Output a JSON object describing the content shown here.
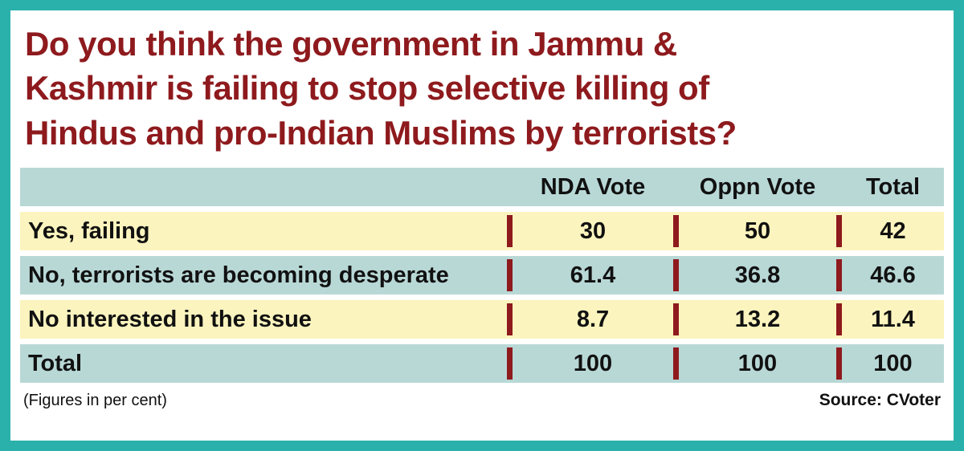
{
  "title_lines": [
    "Do you think the government in Jammu &",
    "Kashmir is failing to stop selective killing of",
    "Hindus and pro-Indian Muslims by terrorists?"
  ],
  "colors": {
    "border_teal": "#2bb1ab",
    "title_red": "#8e1a1d",
    "row_teal": "#b8d8d6",
    "row_yellow": "#fbf4be",
    "divider_red": "#8e1a1d",
    "text": "#111111"
  },
  "chart_data": {
    "type": "table",
    "columns": [
      "",
      "NDA Vote",
      "Oppn Vote",
      "Total"
    ],
    "rows": [
      {
        "label": "Yes, failing",
        "values": [
          "30",
          "50",
          "42"
        ]
      },
      {
        "label": "No, terrorists are becoming desperate",
        "values": [
          "61.4",
          "36.8",
          "46.6"
        ]
      },
      {
        "label": "No interested in the issue",
        "values": [
          "8.7",
          "13.2",
          "11.4"
        ]
      },
      {
        "label": "Total",
        "values": [
          "100",
          "100",
          "100"
        ]
      }
    ],
    "title": "Do you think the government in Jammu & Kashmir is failing to stop selective killing of Hindus and pro-Indian Muslims by terrorists?",
    "unit_note": "(Figures in per cent)",
    "source": "Source: CVoter"
  },
  "footer": {
    "note": "(Figures in per cent)",
    "source": "Source: CVoter"
  }
}
